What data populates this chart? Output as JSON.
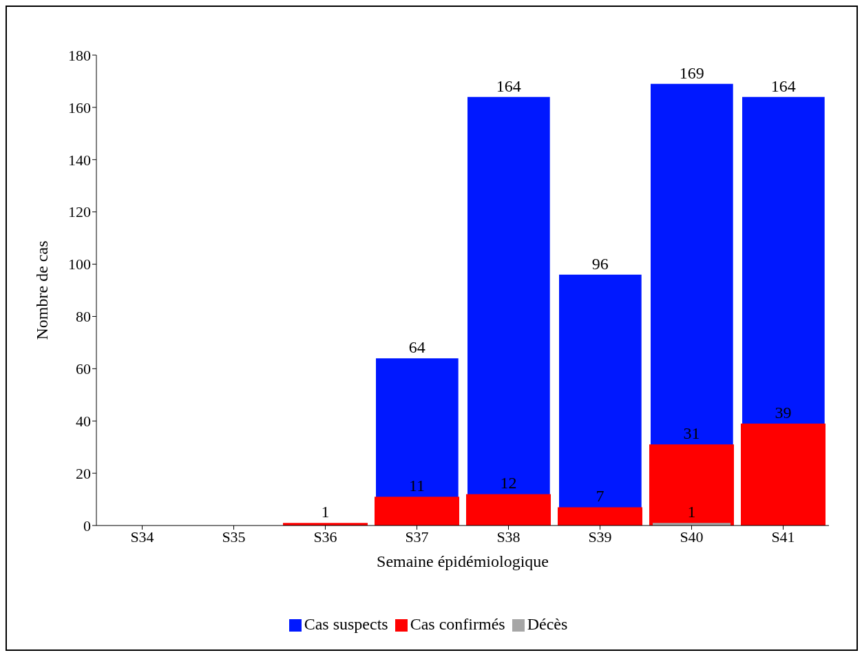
{
  "chart_data": {
    "type": "bar",
    "xlabel": "Semaine épidémiologique",
    "ylabel": "Nombre  de cas",
    "categories": [
      "S34",
      "S35",
      "S36",
      "S37",
      "S38",
      "S39",
      "S40",
      "S41"
    ],
    "series": [
      {
        "name": "Cas suspects",
        "color": "#0018ff",
        "values": [
          0,
          0,
          0,
          64,
          164,
          96,
          169,
          164
        ],
        "value_labels": [
          null,
          null,
          null,
          "64",
          "164",
          "96",
          "169",
          "164"
        ]
      },
      {
        "name": "Cas confirmés",
        "color": "#ff0000",
        "values": [
          0,
          0,
          1,
          11,
          12,
          7,
          31,
          39
        ],
        "value_labels": [
          null,
          null,
          "1",
          "11",
          "12",
          "7",
          "31",
          "39"
        ]
      },
      {
        "name": "Décès",
        "color": "#a6a6a6",
        "values": [
          0,
          0,
          0,
          0,
          0,
          0,
          1,
          0
        ],
        "value_labels": [
          null,
          null,
          null,
          null,
          null,
          null,
          "1",
          null
        ]
      }
    ],
    "ylim": [
      0,
      180
    ],
    "yticks": [
      0,
      20,
      40,
      60,
      80,
      100,
      120,
      140,
      160,
      180
    ],
    "grid": false,
    "legend": "bottom"
  }
}
